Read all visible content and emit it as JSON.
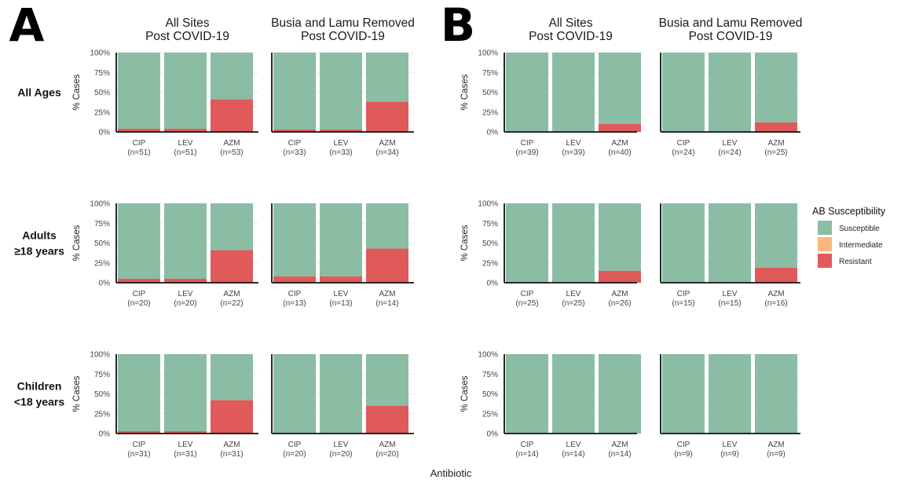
{
  "figure": {
    "panel_letters": [
      "A",
      "B"
    ],
    "column_titles": [
      [
        "All Sites",
        "Post COVID-19"
      ],
      [
        "Busia and Lamu Removed",
        "Post COVID-19"
      ],
      [
        "All Sites",
        "Post COVID-19"
      ],
      [
        "Busia and Lamu Removed",
        "Post COVID-19"
      ]
    ],
    "row_labels": [
      [
        "All Ages"
      ],
      [
        "Adults",
        "≥18 years"
      ],
      [
        "Children",
        "<18 years"
      ]
    ],
    "y_axis_label": "% Cases",
    "x_axis_label": "Antibiotic",
    "y_ticks": [
      "0%",
      "25%",
      "50%",
      "75%",
      "100%"
    ],
    "legend": {
      "title": "AB Susceptibility",
      "position": "right",
      "items": [
        {
          "label": "Susceptible",
          "color": "#8abda4"
        },
        {
          "label": "Intermediate",
          "color": "#f6b97b"
        },
        {
          "label": "Resistant",
          "color": "#e05a5a"
        }
      ]
    }
  },
  "chart_data": {
    "type": "bar",
    "stacked": true,
    "ylim": [
      0,
      100
    ],
    "categories": [
      "CIP",
      "LEV",
      "AZM"
    ],
    "facets": [
      {
        "panel": "A",
        "column": 0,
        "row": 0,
        "n": [
          "(n=51)",
          "(n=51)",
          "(n=53)"
        ],
        "resistant": [
          4,
          4,
          41
        ],
        "intermediate": [
          0,
          0,
          0
        ],
        "susceptible": [
          96,
          96,
          59
        ]
      },
      {
        "panel": "A",
        "column": 1,
        "row": 0,
        "n": [
          "(n=33)",
          "(n=33)",
          "(n=34)"
        ],
        "resistant": [
          3,
          3,
          38
        ],
        "intermediate": [
          0,
          0,
          0
        ],
        "susceptible": [
          97,
          97,
          62
        ]
      },
      {
        "panel": "B",
        "column": 2,
        "row": 0,
        "n": [
          "(n=39)",
          "(n=39)",
          "(n=40)"
        ],
        "resistant": [
          0,
          0,
          10
        ],
        "intermediate": [
          0,
          0,
          0
        ],
        "susceptible": [
          100,
          100,
          90
        ]
      },
      {
        "panel": "B",
        "column": 3,
        "row": 0,
        "n": [
          "(n=24)",
          "(n=24)",
          "(n=25)"
        ],
        "resistant": [
          0,
          0,
          12
        ],
        "intermediate": [
          0,
          0,
          0
        ],
        "susceptible": [
          100,
          100,
          88
        ]
      },
      {
        "panel": "A",
        "column": 0,
        "row": 1,
        "n": [
          "(n=20)",
          "(n=20)",
          "(n=22)"
        ],
        "resistant": [
          5,
          5,
          41
        ],
        "intermediate": [
          0,
          0,
          0
        ],
        "susceptible": [
          95,
          95,
          59
        ]
      },
      {
        "panel": "A",
        "column": 1,
        "row": 1,
        "n": [
          "(n=13)",
          "(n=13)",
          "(n=14)"
        ],
        "resistant": [
          8,
          8,
          43
        ],
        "intermediate": [
          0,
          0,
          0
        ],
        "susceptible": [
          92,
          92,
          57
        ]
      },
      {
        "panel": "B",
        "column": 2,
        "row": 1,
        "n": [
          "(n=25)",
          "(n=25)",
          "(n=26)"
        ],
        "resistant": [
          0,
          0,
          15
        ],
        "intermediate": [
          0,
          0,
          0
        ],
        "susceptible": [
          100,
          100,
          85
        ]
      },
      {
        "panel": "B",
        "column": 3,
        "row": 1,
        "n": [
          "(n=15)",
          "(n=15)",
          "(n=16)"
        ],
        "resistant": [
          0,
          0,
          19
        ],
        "intermediate": [
          0,
          0,
          0
        ],
        "susceptible": [
          100,
          100,
          81
        ]
      },
      {
        "panel": "A",
        "column": 0,
        "row": 2,
        "n": [
          "(n=31)",
          "(n=31)",
          "(n=31)"
        ],
        "resistant": [
          3,
          3,
          42
        ],
        "intermediate": [
          0,
          0,
          0
        ],
        "susceptible": [
          97,
          97,
          58
        ]
      },
      {
        "panel": "A",
        "column": 1,
        "row": 2,
        "n": [
          "(n=20)",
          "(n=20)",
          "(n=20)"
        ],
        "resistant": [
          0,
          0,
          35
        ],
        "intermediate": [
          0,
          0,
          0
        ],
        "susceptible": [
          100,
          100,
          65
        ]
      },
      {
        "panel": "B",
        "column": 2,
        "row": 2,
        "n": [
          "(n=14)",
          "(n=14)",
          "(n=14)"
        ],
        "resistant": [
          0,
          0,
          0
        ],
        "intermediate": [
          0,
          0,
          0
        ],
        "susceptible": [
          100,
          100,
          100
        ]
      },
      {
        "panel": "B",
        "column": 3,
        "row": 2,
        "n": [
          "(n=9)",
          "(n=9)",
          "(n=9)"
        ],
        "resistant": [
          0,
          0,
          0
        ],
        "intermediate": [
          0,
          0,
          0
        ],
        "susceptible": [
          100,
          100,
          100
        ]
      }
    ]
  }
}
